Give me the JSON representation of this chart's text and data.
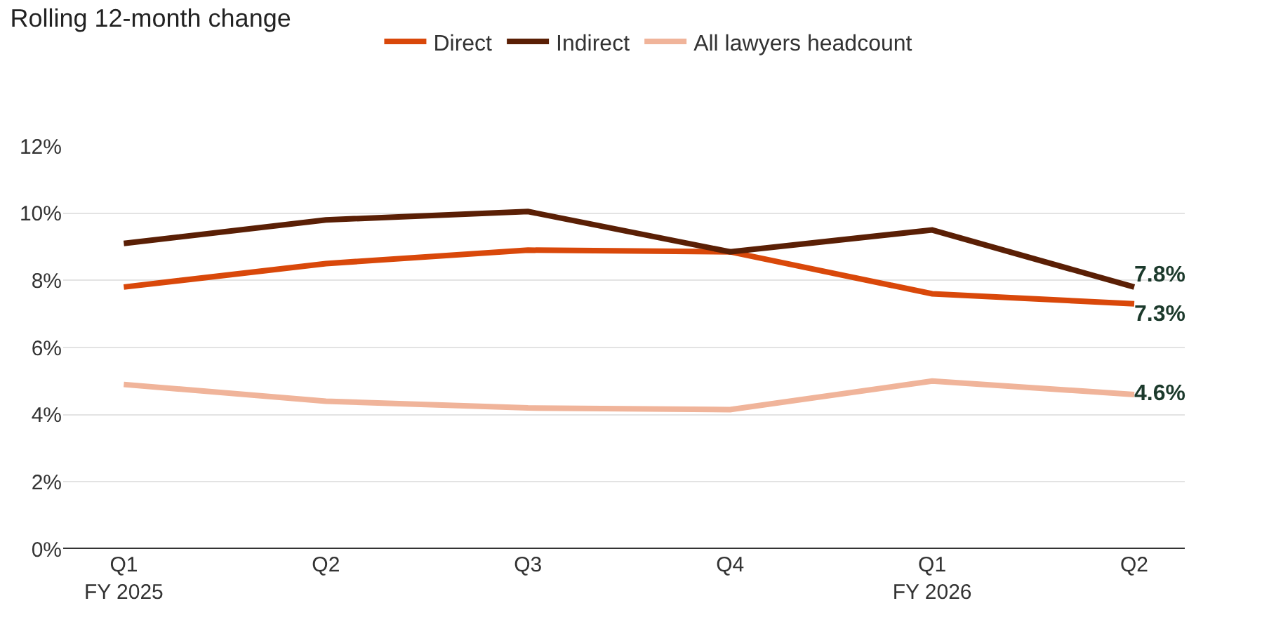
{
  "chart_data": {
    "type": "line",
    "title": "Rolling 12-month change",
    "categories": [
      "Q1\nFY 2025",
      "Q2",
      "Q3",
      "Q4",
      "Q1\nFY 2026",
      "Q2"
    ],
    "series": [
      {
        "name": "Direct",
        "color": "#d9480a",
        "values": [
          7.8,
          8.5,
          8.9,
          8.85,
          7.6,
          7.3
        ],
        "value_labels": [
          null,
          null,
          null,
          null,
          null,
          "7.3%"
        ]
      },
      {
        "name": "Indirect",
        "color": "#5a1f05",
        "values": [
          9.1,
          9.8,
          10.05,
          8.85,
          9.5,
          7.8
        ],
        "value_labels": [
          null,
          null,
          null,
          null,
          null,
          "7.8%"
        ]
      },
      {
        "name": "All lawyers headcount",
        "color": "#f0b49a",
        "values": [
          4.9,
          4.4,
          4.2,
          4.15,
          5.0,
          4.6
        ],
        "value_labels": [
          null,
          null,
          null,
          null,
          null,
          "4.6%"
        ]
      }
    ],
    "ylim": [
      0,
      12
    ],
    "yticks": [
      {
        "value": 0,
        "label": "0%"
      },
      {
        "value": 2,
        "label": "2%"
      },
      {
        "value": 4,
        "label": "4%"
      },
      {
        "value": 6,
        "label": "6%"
      },
      {
        "value": 8,
        "label": "8%"
      },
      {
        "value": 10,
        "label": "10%"
      },
      {
        "value": 12,
        "label": "12%"
      }
    ],
    "grid": "y",
    "legend": "top",
    "marker": "none",
    "line_style": "solid"
  }
}
